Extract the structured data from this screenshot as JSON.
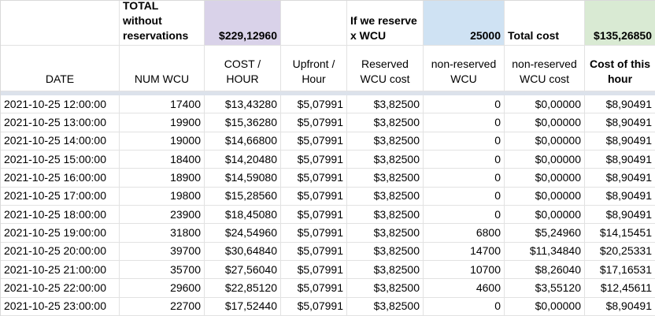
{
  "colors": {
    "purple_highlight": "#d9d2e9",
    "blue_highlight": "#cfe2f3",
    "green_highlight": "#d9ead3",
    "gridline": "#e2e2e2",
    "frozen_divider": "#dce2eb"
  },
  "header_row1": {
    "cells": [
      {
        "name": "corner-blank-cell",
        "text": "",
        "align": "left",
        "bold": false,
        "bg": ""
      },
      {
        "name": "total-without-reservations-label",
        "text": "TOTAL\nwithout\nreservations",
        "align": "left",
        "bold": true,
        "bg": ""
      },
      {
        "name": "total-without-reservations-value",
        "text": "$229,12960",
        "align": "right",
        "bold": true,
        "bg": "purple"
      },
      {
        "name": "blank-cell",
        "text": "",
        "align": "left",
        "bold": false,
        "bg": ""
      },
      {
        "name": "if-we-reserve-label",
        "text": "If we reserve\nx WCU",
        "align": "left",
        "bold": true,
        "bg": ""
      },
      {
        "name": "reserved-wcu-amount-value",
        "text": "25000",
        "align": "right",
        "bold": true,
        "bg": "blue"
      },
      {
        "name": "total-cost-label",
        "text": "Total cost",
        "align": "left",
        "bold": true,
        "bg": ""
      },
      {
        "name": "total-cost-value",
        "text": "$135,26850",
        "align": "right",
        "bold": true,
        "bg": "green"
      }
    ]
  },
  "header_row2": {
    "cells": [
      {
        "name": "column-header-date",
        "text": "DATE",
        "bold": false
      },
      {
        "name": "column-header-num-wcu",
        "text": "NUM WCU",
        "bold": false
      },
      {
        "name": "column-header-cost-per-hour",
        "text": "COST /\nHOUR",
        "bold": false
      },
      {
        "name": "column-header-upfront-per-hour",
        "text": "Upfront /\nHour",
        "bold": false
      },
      {
        "name": "column-header-reserved-wcu-cost",
        "text": "Reserved\nWCU cost",
        "bold": false
      },
      {
        "name": "column-header-non-reserved-wcu",
        "text": "non-reserved\nWCU",
        "bold": false
      },
      {
        "name": "column-header-non-reserved-wcu-cost",
        "text": "non-reserved\nWCU cost",
        "bold": false
      },
      {
        "name": "column-header-cost-of-this-hour",
        "text": "Cost of this\nhour",
        "bold": true
      }
    ]
  },
  "rows": [
    [
      "2021-10-25 12:00:00",
      "17400",
      "$13,43280",
      "$5,07991",
      "$3,82500",
      "0",
      "$0,00000",
      "$8,90491"
    ],
    [
      "2021-10-25 13:00:00",
      "19900",
      "$15,36280",
      "$5,07991",
      "$3,82500",
      "0",
      "$0,00000",
      "$8,90491"
    ],
    [
      "2021-10-25 14:00:00",
      "19000",
      "$14,66800",
      "$5,07991",
      "$3,82500",
      "0",
      "$0,00000",
      "$8,90491"
    ],
    [
      "2021-10-25 15:00:00",
      "18400",
      "$14,20480",
      "$5,07991",
      "$3,82500",
      "0",
      "$0,00000",
      "$8,90491"
    ],
    [
      "2021-10-25 16:00:00",
      "18900",
      "$14,59080",
      "$5,07991",
      "$3,82500",
      "0",
      "$0,00000",
      "$8,90491"
    ],
    [
      "2021-10-25 17:00:00",
      "19800",
      "$15,28560",
      "$5,07991",
      "$3,82500",
      "0",
      "$0,00000",
      "$8,90491"
    ],
    [
      "2021-10-25 18:00:00",
      "23900",
      "$18,45080",
      "$5,07991",
      "$3,82500",
      "0",
      "$0,00000",
      "$8,90491"
    ],
    [
      "2021-10-25 19:00:00",
      "31800",
      "$24,54960",
      "$5,07991",
      "$3,82500",
      "6800",
      "$5,24960",
      "$14,15451"
    ],
    [
      "2021-10-25 20:00:00",
      "39700",
      "$30,64840",
      "$5,07991",
      "$3,82500",
      "14700",
      "$11,34840",
      "$20,25331"
    ],
    [
      "2021-10-25 21:00:00",
      "35700",
      "$27,56040",
      "$5,07991",
      "$3,82500",
      "10700",
      "$8,26040",
      "$17,16531"
    ],
    [
      "2021-10-25 22:00:00",
      "29600",
      "$22,85120",
      "$5,07991",
      "$3,82500",
      "4600",
      "$3,55120",
      "$12,45611"
    ],
    [
      "2021-10-25 23:00:00",
      "22700",
      "$17,52440",
      "$5,07991",
      "$3,82500",
      "0",
      "$0,00000",
      "$8,90491"
    ]
  ],
  "data_align": [
    "left",
    "right",
    "right",
    "right",
    "right",
    "right",
    "right",
    "right"
  ]
}
